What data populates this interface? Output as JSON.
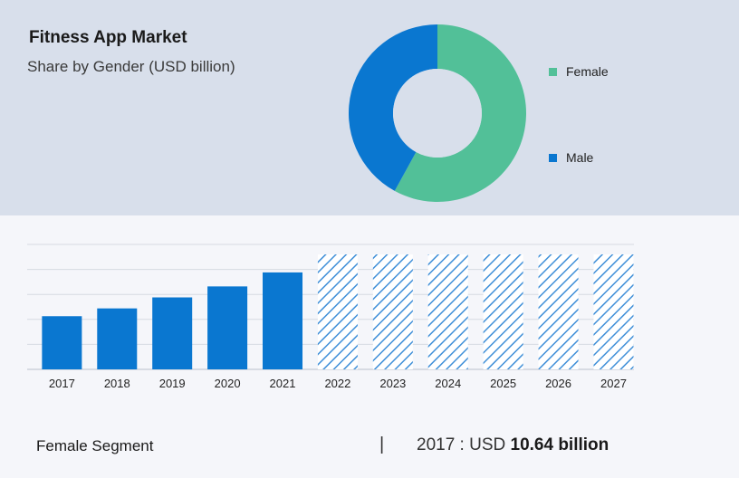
{
  "header": {
    "title": "Fitness App Market",
    "subtitle": "Share by Gender (USD billion)"
  },
  "colors": {
    "female": "#52c098",
    "male": "#0a77d0",
    "bar": "#0a77d0",
    "hatch": "#3f8fd8"
  },
  "chart_data": [
    {
      "type": "pie",
      "title": "Share by Gender (USD billion)",
      "donut": true,
      "slices": [
        {
          "name": "Female",
          "value": 58
        },
        {
          "name": "Male",
          "value": 42
        }
      ],
      "legend": [
        "Female",
        "Male"
      ],
      "legend_position": "right"
    },
    {
      "type": "bar",
      "categories": [
        "2017",
        "2018",
        "2019",
        "2020",
        "2021",
        "2022",
        "2023",
        "2024",
        "2025",
        "2026",
        "2027"
      ],
      "values": [
        10.64,
        12.2,
        14.4,
        16.6,
        19.4,
        23.0,
        23.0,
        23.0,
        23.0,
        23.0,
        23.0
      ],
      "forecast_from": "2022",
      "forecast_style": "hatched",
      "ylim": [
        0,
        25
      ],
      "grid": true
    }
  ],
  "footer": {
    "segment_label": "Female Segment",
    "separator": "|",
    "year_prefix": "2017 : USD ",
    "value_text": "10.64 billion"
  }
}
